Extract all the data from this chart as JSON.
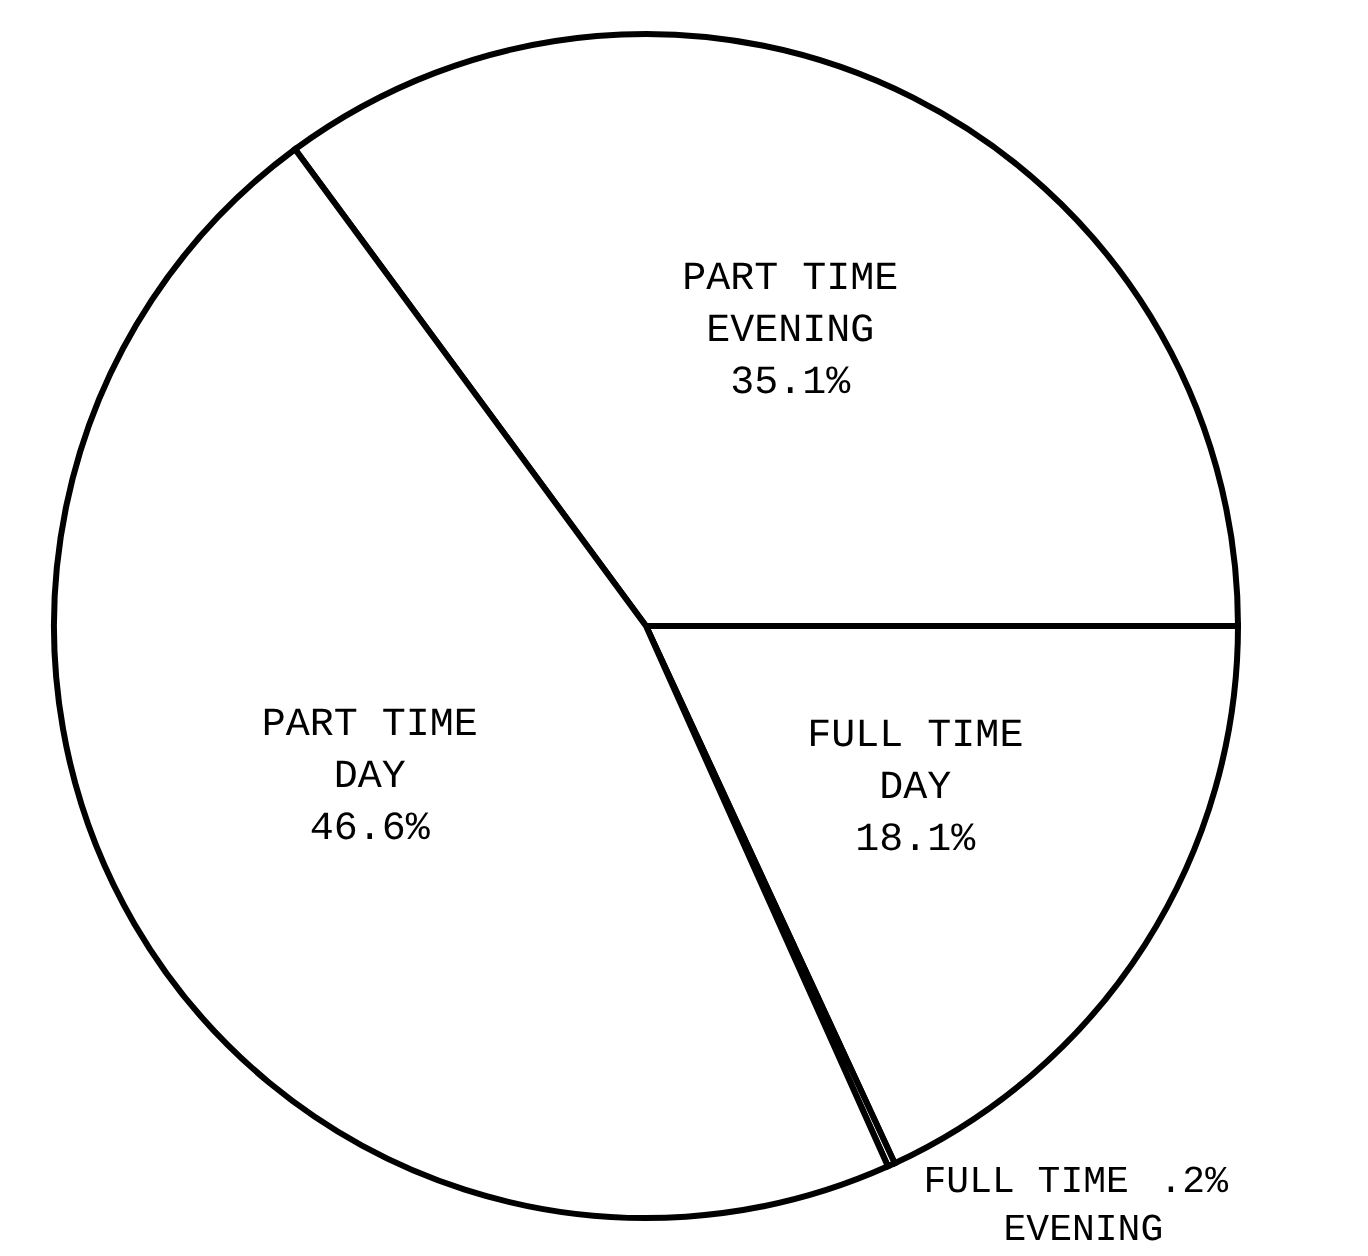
{
  "chart_data": {
    "type": "pie",
    "categories": [
      "PART TIME EVENING",
      "FULL TIME DAY",
      "FULL TIME EVENING",
      "PART TIME DAY"
    ],
    "values": [
      35.1,
      18.1,
      0.2,
      46.6
    ],
    "value_labels": [
      "35.1%",
      "18.1%",
      ".2%",
      "46.6%"
    ],
    "colors": [
      "#ffffff",
      "#ffffff",
      "#ffffff",
      "#ffffff"
    ],
    "legend": false
  }
}
